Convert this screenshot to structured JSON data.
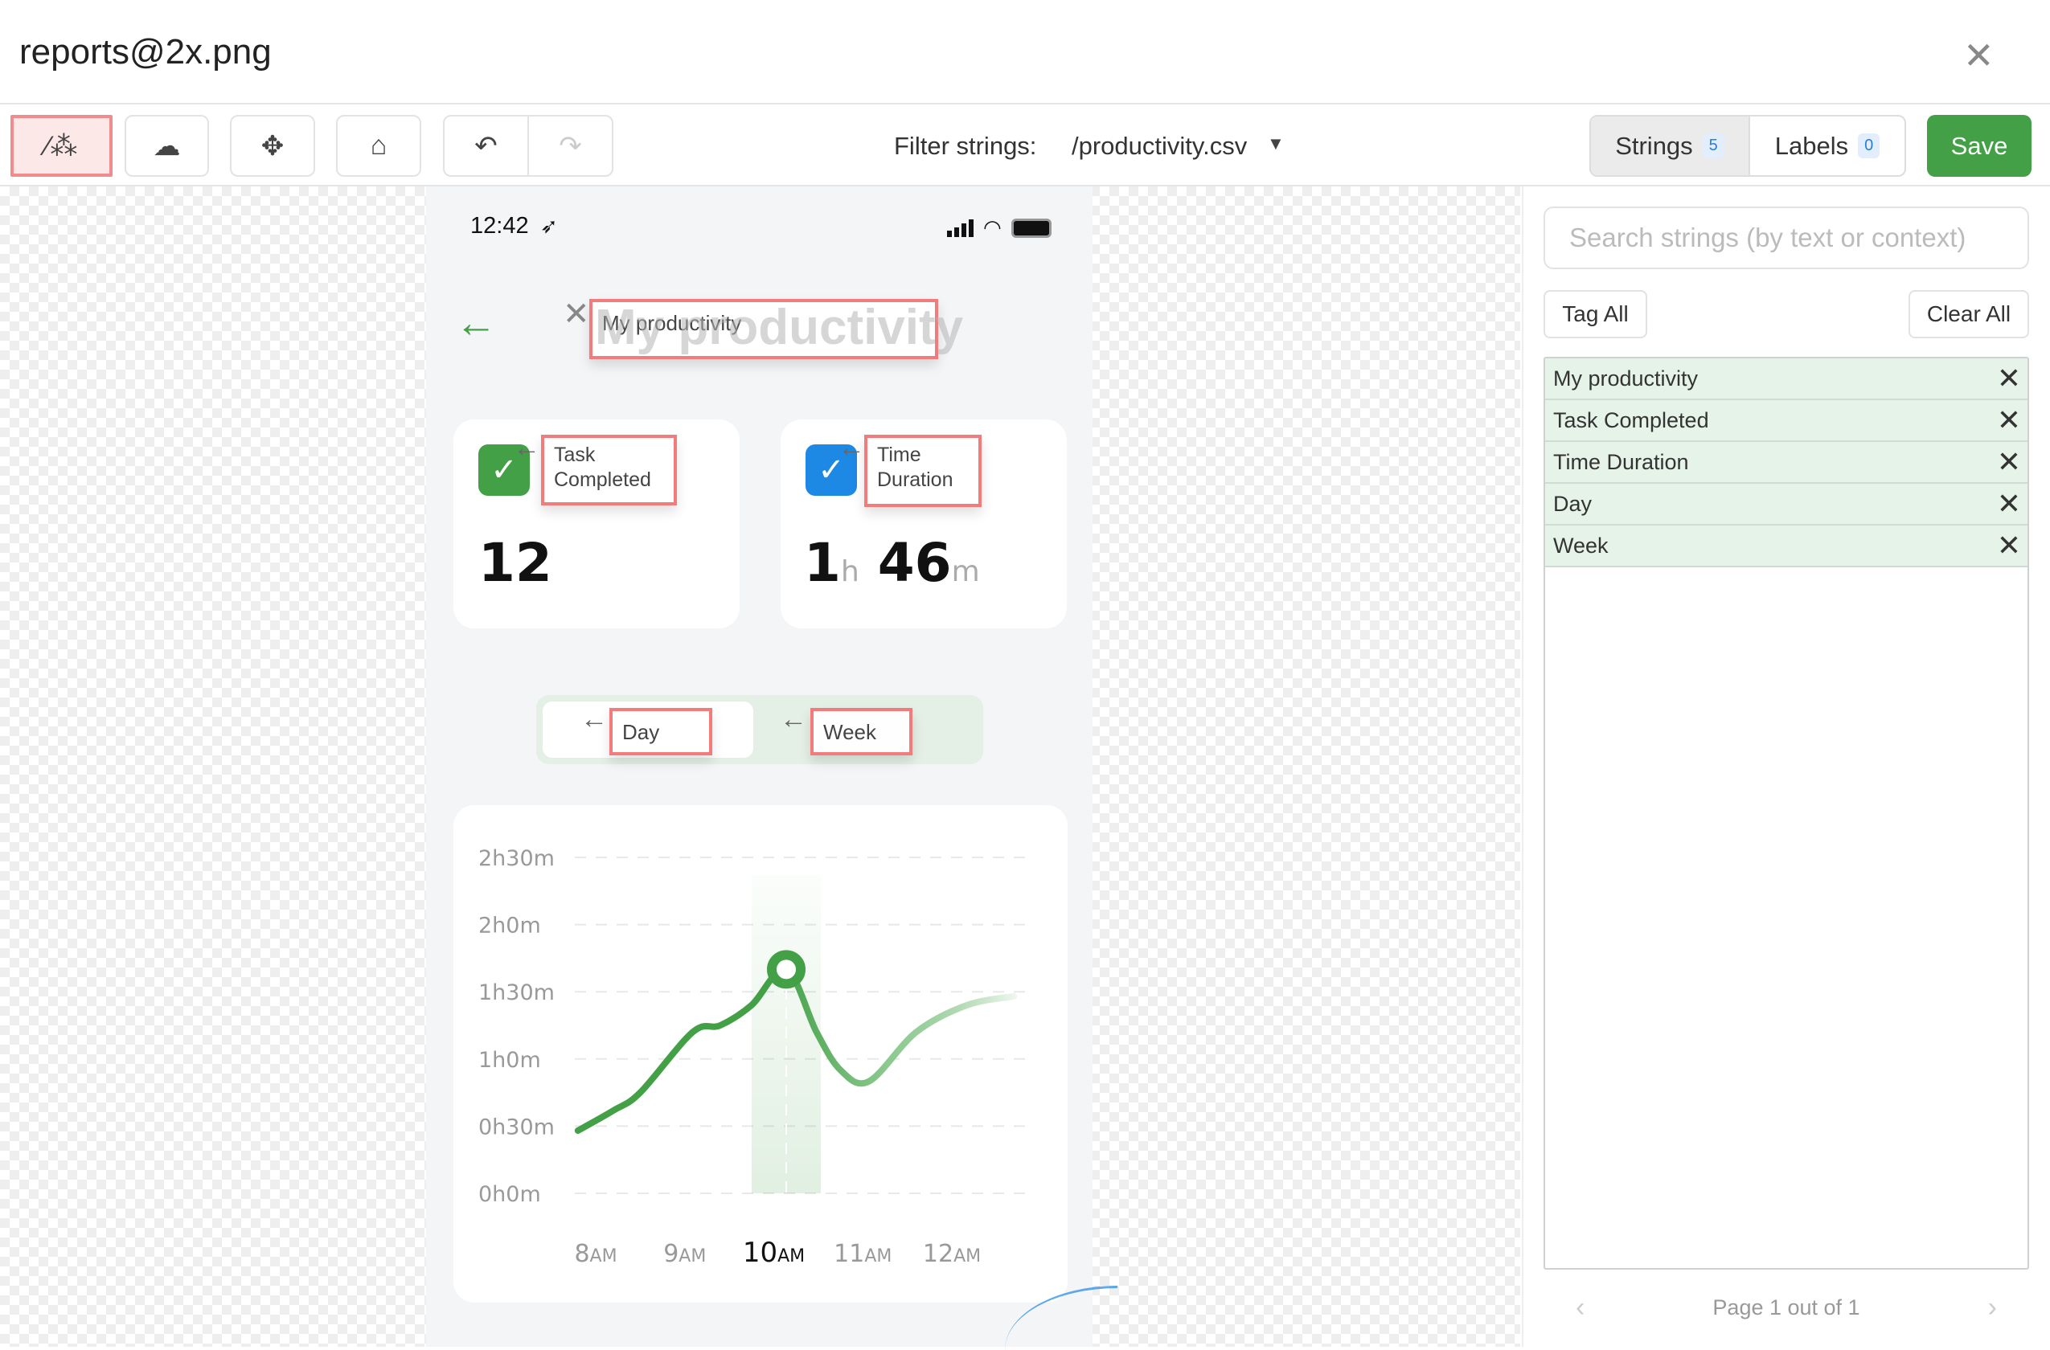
{
  "window": {
    "title": "reports@2x.png",
    "close_icon": "close-icon"
  },
  "toolbar": {
    "tools": [
      "magic-wand-icon",
      "cloud-upload-icon",
      "move-icon",
      "broom-icon",
      "undo-icon",
      "redo-icon"
    ],
    "filter_label": "Filter strings:",
    "filter_value": "/productivity.csv",
    "tabs": [
      {
        "label": "Strings",
        "count": "5",
        "active": true
      },
      {
        "label": "Labels",
        "count": "0",
        "active": false
      }
    ],
    "save_label": "Save",
    "colors": {
      "save": "#43a047",
      "selection": "#f28b8b"
    }
  },
  "phone": {
    "status_time": "12:42",
    "title_ghost": "My productivity",
    "cards": [
      {
        "value": "12",
        "ghost": "Task Completed",
        "icon_color": "#43a047"
      },
      {
        "hours": "1",
        "h": "h",
        "minutes": "46",
        "m": "m",
        "ghost": "Time Duration",
        "icon_color": "#1e88e5"
      }
    ],
    "toggle_ghost": [
      "Day",
      "Week"
    ]
  },
  "annotations": [
    {
      "text": "My productivity"
    },
    {
      "line1": "Task",
      "line2": "Completed"
    },
    {
      "line1": "Time",
      "line2": "Duration"
    },
    {
      "text": "Day"
    },
    {
      "text": "Week"
    }
  ],
  "chart_data": {
    "type": "line",
    "ylabel": "",
    "xlabel": "",
    "y_ticks": [
      "0h0m",
      "0h30m",
      "1h0m",
      "1h30m",
      "2h0m",
      "2h30m"
    ],
    "ylim_minutes": [
      0,
      150
    ],
    "x_ticks": [
      {
        "h": 8,
        "num": "8",
        "suf": "AM"
      },
      {
        "h": 9,
        "num": "9",
        "suf": "AM"
      },
      {
        "h": 10,
        "num": "10",
        "suf": "AM",
        "active": true
      },
      {
        "h": 11,
        "num": "11",
        "suf": "AM"
      },
      {
        "h": 12,
        "num": "12",
        "suf": "AM"
      }
    ],
    "series": [
      {
        "points_hour_minutes": [
          [
            7.8,
            28
          ],
          [
            8.2,
            37
          ],
          [
            8.5,
            45
          ],
          [
            9.09,
            72
          ],
          [
            9.4,
            75
          ],
          [
            9.75,
            84
          ],
          [
            10.14,
            100
          ],
          [
            10.48,
            72
          ],
          [
            10.75,
            55
          ],
          [
            11.07,
            50
          ],
          [
            11.6,
            72
          ],
          [
            12.17,
            84
          ],
          [
            12.7,
            88
          ]
        ]
      }
    ],
    "highlight": {
      "hour": 10.14,
      "minutes": 100
    },
    "grid": true,
    "color": "#43a047"
  },
  "panel": {
    "search_placeholder": "Search strings (by text or context)",
    "tag_all": "Tag All",
    "clear_all": "Clear All",
    "strings": [
      "My productivity",
      "Task Completed",
      "Time Duration",
      "Day",
      "Week"
    ],
    "pager": "Page 1 out of 1",
    "row_color": "#e6f3e8"
  }
}
